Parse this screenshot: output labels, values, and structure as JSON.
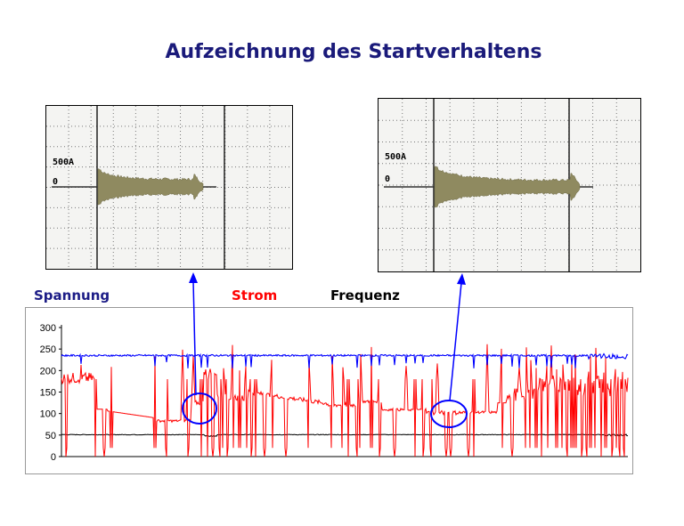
{
  "title": "Aufzeichnung des Startverhaltens",
  "scopes": [
    {
      "amp_label": "500A",
      "zero_label": "0"
    },
    {
      "amp_label": "500A",
      "zero_label": "0"
    }
  ],
  "legend": {
    "spannung": "Spannung",
    "strom": "Strom",
    "frequenz": "Frequenz"
  },
  "colors": {
    "spannung": "#0000ff",
    "strom": "#ff0000",
    "frequenz": "#000000",
    "waveform": "#8f8a60",
    "title": "#1a1a7a",
    "highlight": "#0000ff"
  },
  "chart_data": {
    "type": "line",
    "ylim": [
      0,
      300
    ],
    "yticks": [
      0,
      50,
      100,
      150,
      200,
      250,
      300
    ],
    "ytick_labels": [
      "0",
      "50",
      "100",
      "150",
      "200",
      "250",
      "300"
    ],
    "grid": false,
    "series": [
      {
        "key": "spannung",
        "baseline": 235
      },
      {
        "key": "strom",
        "baseline": 100
      },
      {
        "key": "frequenz",
        "baseline": 51
      }
    ]
  }
}
